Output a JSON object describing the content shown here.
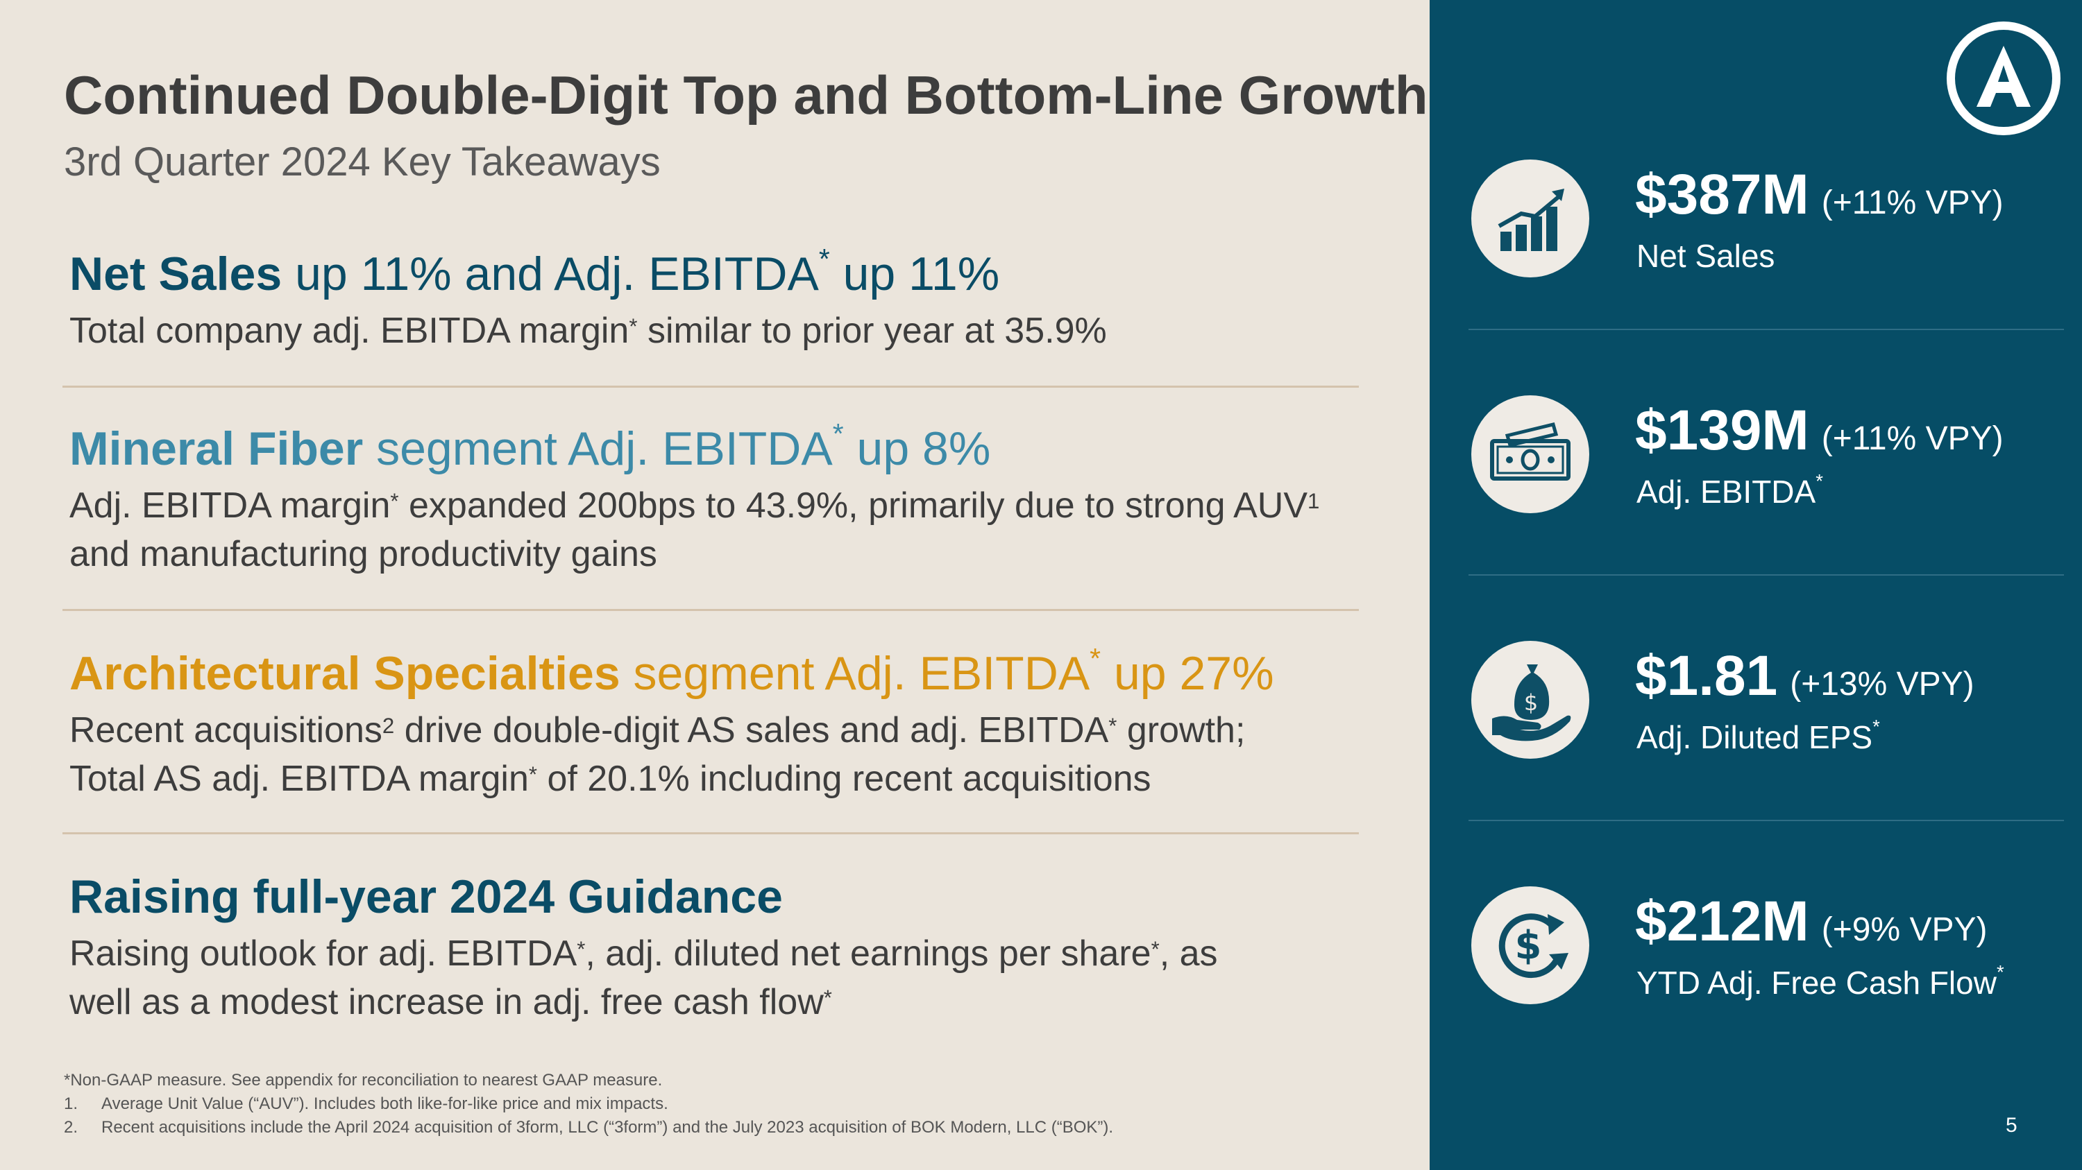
{
  "header": {
    "title": "Continued Double-Digit Top and Bottom-Line Growth",
    "subtitle": "3rd Quarter 2024 Key Takeaways"
  },
  "sections": [
    {
      "heading_bold": "Net Sales",
      "heading_rest_1": " up 11% and Adj. EBITDA",
      "heading_star": "*",
      "heading_rest_2": " up 11%",
      "body_1": "Total company adj. EBITDA margin",
      "body_star": "*",
      "body_2": " similar to prior year at 35.9%"
    },
    {
      "heading_bold": "Mineral Fiber",
      "heading_rest_1": " segment Adj. EBITDA",
      "heading_star": "*",
      "heading_rest_2": " up 8%",
      "body_1": "Adj. EBITDA margin",
      "body_star": "*",
      "body_2": " expanded 200bps to 43.9%, primarily due to strong AUV",
      "body_sup": "1",
      "body_3": " and manufacturing productivity gains"
    },
    {
      "heading_bold": "Architectural Specialties",
      "heading_rest_1": " segment Adj. EBITDA",
      "heading_star": "*",
      "heading_rest_2": " up 27%",
      "body_1": "Recent acquisitions",
      "body_sup": "2",
      "body_2": " drive double-digit AS sales and adj. EBITDA",
      "body_star": "*",
      "body_3": " growth;",
      "body_4": "Total AS adj. EBITDA margin",
      "body_star2": "*",
      "body_5": " of 20.1% including recent acquisitions"
    },
    {
      "heading_bold": "Raising full-year 2024 Guidance",
      "body_1": "Raising outlook for adj. EBITDA",
      "body_star": "*",
      "body_2": ", adj. diluted net earnings per share",
      "body_star2": "*",
      "body_3": ", as",
      "body_4": "well as a modest increase in adj. free cash flow",
      "body_star3": "*"
    }
  ],
  "footnotes": {
    "nongaap": "*Non-GAAP measure. See appendix for reconciliation to nearest GAAP measure.",
    "items": [
      {
        "num": "1.",
        "text": "Average Unit Value (“AUV”). Includes both like-for-like price and mix impacts."
      },
      {
        "num": "2.",
        "text": "Recent acquisitions include the April 2024 acquisition of 3form, LLC (“3form”) and the July 2023 acquisition of BOK Modern, LLC (“BOK”)."
      }
    ]
  },
  "metrics": [
    {
      "icon": "bar-chart-growth-icon",
      "value": "$387M",
      "change": "(+11% VPY)",
      "label": "Net Sales",
      "star": ""
    },
    {
      "icon": "cash-bill-icon",
      "value": "$139M",
      "change": "(+11% VPY)",
      "label": "Adj. EBITDA",
      "star": "*"
    },
    {
      "icon": "money-bag-hand-icon",
      "value": "$1.81",
      "change": "(+13% VPY)",
      "label": "Adj. Diluted EPS",
      "star": "*"
    },
    {
      "icon": "dollar-cycle-icon",
      "value": "$212M",
      "change": "(+9% VPY)",
      "label": "YTD Adj. Free Cash Flow",
      "star": "*"
    }
  ],
  "page_number": "5",
  "colors": {
    "teal": "#0a4c66",
    "light_blue": "#3c8aa8",
    "gold": "#d99514",
    "panel": "#064d66",
    "background": "#ebe5dc"
  }
}
